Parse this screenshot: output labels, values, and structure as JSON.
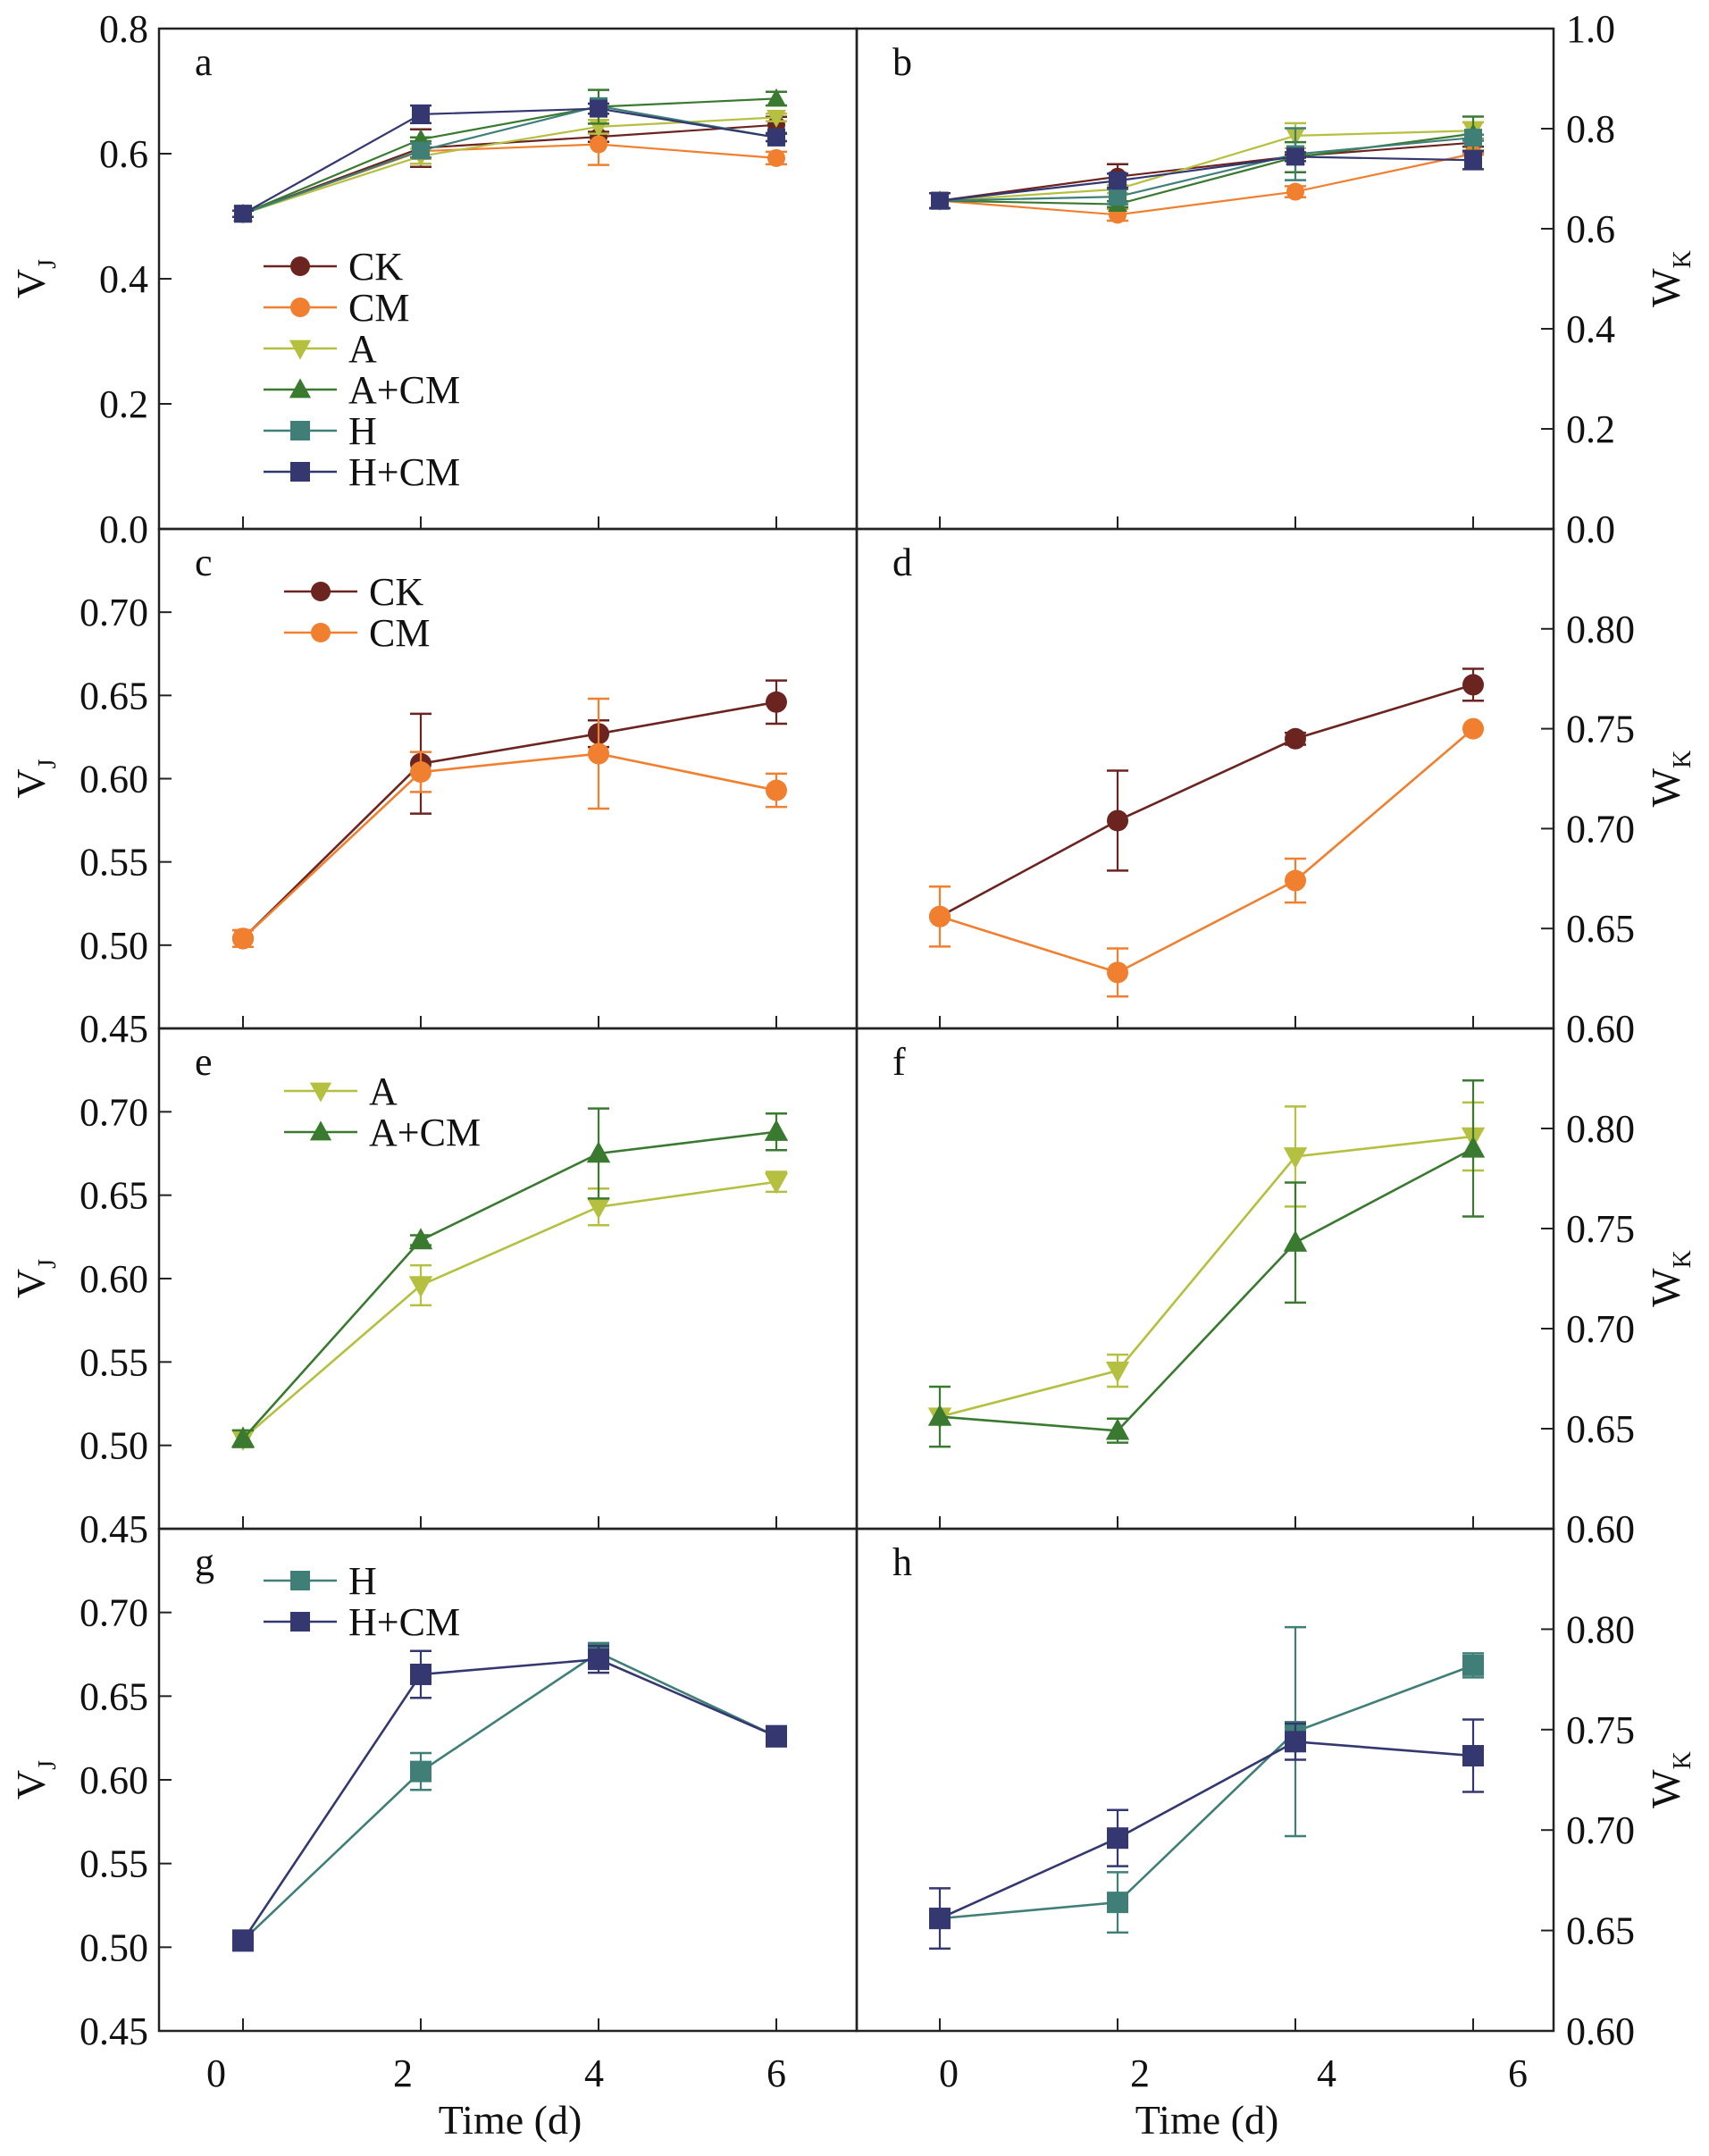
{
  "figure": {
    "x_label": "Time (d)",
    "left_y_label": "V",
    "left_y_label_sub": "J",
    "right_y_label": "W",
    "right_y_label_sub": "K"
  },
  "series_styles": {
    "CK": {
      "color": "#6b2420",
      "marker": "circle"
    },
    "CM": {
      "color": "#f08030",
      "marker": "circle"
    },
    "A": {
      "color": "#b5c040",
      "marker": "triangle-down"
    },
    "A+CM": {
      "color": "#3a7a30",
      "marker": "triangle-up"
    },
    "H": {
      "color": "#3f7f78",
      "marker": "square"
    },
    "H+CM": {
      "color": "#353870",
      "marker": "square"
    }
  },
  "chart_data": [
    {
      "panel": "a",
      "type": "line",
      "xlabel": "",
      "ylabel": "VJ",
      "x": [
        0,
        2,
        4,
        6
      ],
      "xticks": [],
      "ylim": [
        0.0,
        0.8
      ],
      "yticks": [
        0.0,
        0.2,
        0.4,
        0.6,
        0.8
      ],
      "ytick_labels": [
        "0.0",
        "0.2",
        "0.4",
        "0.6",
        "0.8"
      ],
      "legend": [
        "CK",
        "CM",
        "A",
        "A+CM",
        "H",
        "H+CM"
      ],
      "legend_position": "center-left",
      "series": [
        {
          "name": "CK",
          "values": [
            0.504,
            0.609,
            0.627,
            0.646
          ],
          "errors": [
            0.005,
            0.03,
            0.008,
            0.013
          ]
        },
        {
          "name": "CM",
          "values": [
            0.504,
            0.604,
            0.615,
            0.593
          ],
          "errors": [
            0.005,
            0.012,
            0.033,
            0.01
          ]
        },
        {
          "name": "A",
          "values": [
            0.504,
            0.596,
            0.643,
            0.658
          ],
          "errors": [
            0.005,
            0.012,
            0.011,
            0.006
          ]
        },
        {
          "name": "A+CM",
          "values": [
            0.504,
            0.623,
            0.675,
            0.688
          ],
          "errors": [
            0.005,
            0.003,
            0.027,
            0.011
          ]
        },
        {
          "name": "H",
          "values": [
            0.504,
            0.605,
            0.676,
            0.626
          ],
          "errors": [
            0.005,
            0.011,
            0.004,
            0.006
          ]
        },
        {
          "name": "H+CM",
          "values": [
            0.504,
            0.663,
            0.672,
            0.626
          ],
          "errors": [
            0.005,
            0.014,
            0.008,
            0.006
          ]
        }
      ]
    },
    {
      "panel": "b",
      "type": "line",
      "xlabel": "",
      "ylabel": "WK",
      "x": [
        0,
        2,
        4,
        6
      ],
      "xticks": [],
      "ylim": [
        0.0,
        1.0
      ],
      "yticks": [
        0.0,
        0.2,
        0.4,
        0.6,
        0.8,
        1.0
      ],
      "ytick_labels": [
        "0.0",
        "0.2",
        "0.4",
        "0.6",
        "0.8",
        "1.0"
      ],
      "legend": [],
      "series": [
        {
          "name": "CK",
          "values": [
            0.656,
            0.704,
            0.745,
            0.772
          ],
          "errors": [
            0.015,
            0.025,
            0.003,
            0.008
          ]
        },
        {
          "name": "CM",
          "values": [
            0.656,
            0.628,
            0.674,
            0.75
          ],
          "errors": [
            0.015,
            0.012,
            0.011,
            0.002
          ]
        },
        {
          "name": "A",
          "values": [
            0.656,
            0.679,
            0.786,
            0.796
          ],
          "errors": [
            0.015,
            0.008,
            0.025,
            0.017
          ]
        },
        {
          "name": "A+CM",
          "values": [
            0.656,
            0.649,
            0.743,
            0.79
          ],
          "errors": [
            0.015,
            0.006,
            0.03,
            0.034
          ]
        },
        {
          "name": "H",
          "values": [
            0.656,
            0.664,
            0.749,
            0.782
          ],
          "errors": [
            0.015,
            0.015,
            0.052,
            0.006
          ]
        },
        {
          "name": "H+CM",
          "values": [
            0.656,
            0.696,
            0.744,
            0.737
          ],
          "errors": [
            0.015,
            0.014,
            0.009,
            0.018
          ]
        }
      ]
    },
    {
      "panel": "c",
      "type": "line",
      "xlabel": "",
      "ylabel": "VJ",
      "x": [
        0,
        2,
        4,
        6
      ],
      "xticks": [],
      "ylim": [
        0.45,
        0.75
      ],
      "yticks": [
        0.45,
        0.5,
        0.55,
        0.6,
        0.65,
        0.7
      ],
      "ytick_labels": [
        "0.45",
        "0.50",
        "0.55",
        "0.60",
        "0.65",
        "0.70"
      ],
      "legend": [
        "CK",
        "CM"
      ],
      "legend_position": "top-left",
      "series": [
        {
          "name": "CK",
          "values": [
            0.504,
            0.609,
            0.627,
            0.646
          ],
          "errors": [
            0.005,
            0.03,
            0.008,
            0.013
          ]
        },
        {
          "name": "CM",
          "values": [
            0.504,
            0.604,
            0.615,
            0.593
          ],
          "errors": [
            0.005,
            0.012,
            0.033,
            0.01
          ]
        }
      ]
    },
    {
      "panel": "d",
      "type": "line",
      "xlabel": "",
      "ylabel": "WK",
      "x": [
        0,
        2,
        4,
        6
      ],
      "xticks": [],
      "ylim": [
        0.6,
        0.85
      ],
      "yticks": [
        0.6,
        0.65,
        0.7,
        0.75,
        0.8
      ],
      "ytick_labels": [
        "0.60",
        "0.65",
        "0.70",
        "0.75",
        "0.80"
      ],
      "legend": [],
      "series": [
        {
          "name": "CK",
          "values": [
            0.656,
            0.704,
            0.745,
            0.772
          ],
          "errors": [
            0.0,
            0.025,
            0.003,
            0.008
          ]
        },
        {
          "name": "CM",
          "values": [
            0.656,
            0.628,
            0.674,
            0.75
          ],
          "errors": [
            0.015,
            0.012,
            0.011,
            0.0
          ]
        }
      ]
    },
    {
      "panel": "e",
      "type": "line",
      "xlabel": "",
      "ylabel": "VJ",
      "x": [
        0,
        2,
        4,
        6
      ],
      "xticks": [],
      "ylim": [
        0.45,
        0.75
      ],
      "yticks": [
        0.45,
        0.5,
        0.55,
        0.6,
        0.65,
        0.7
      ],
      "ytick_labels": [
        "0.45",
        "0.50",
        "0.55",
        "0.60",
        "0.65",
        "0.70"
      ],
      "legend": [
        "A",
        "A+CM"
      ],
      "legend_position": "top-left",
      "series": [
        {
          "name": "A",
          "values": [
            0.504,
            0.596,
            0.643,
            0.658
          ],
          "errors": [
            0.005,
            0.012,
            0.011,
            0.006
          ]
        },
        {
          "name": "A+CM",
          "values": [
            0.504,
            0.623,
            0.675,
            0.688
          ],
          "errors": [
            0.005,
            0.003,
            0.027,
            0.011
          ]
        }
      ]
    },
    {
      "panel": "f",
      "type": "line",
      "xlabel": "",
      "ylabel": "WK",
      "x": [
        0,
        2,
        4,
        6
      ],
      "xticks": [],
      "ylim": [
        0.6,
        0.85
      ],
      "yticks": [
        0.6,
        0.65,
        0.7,
        0.75,
        0.8
      ],
      "ytick_labels": [
        "0.60",
        "0.65",
        "0.70",
        "0.75",
        "0.80"
      ],
      "legend": [],
      "series": [
        {
          "name": "A",
          "values": [
            0.656,
            0.679,
            0.786,
            0.796
          ],
          "errors": [
            0.0,
            0.008,
            0.025,
            0.017
          ]
        },
        {
          "name": "A+CM",
          "values": [
            0.656,
            0.649,
            0.743,
            0.79
          ],
          "errors": [
            0.015,
            0.006,
            0.03,
            0.034
          ]
        }
      ]
    },
    {
      "panel": "g",
      "type": "line",
      "xlabel": "Time (d)",
      "ylabel": "VJ",
      "x": [
        0,
        2,
        4,
        6
      ],
      "xticks": [
        0,
        2,
        4,
        6
      ],
      "xtick_labels": [
        "0",
        "2",
        "4",
        "6"
      ],
      "ylim": [
        0.45,
        0.75
      ],
      "yticks": [
        0.45,
        0.5,
        0.55,
        0.6,
        0.65,
        0.7
      ],
      "ytick_labels": [
        "0.45",
        "0.50",
        "0.55",
        "0.60",
        "0.65",
        "0.70"
      ],
      "legend": [
        "H",
        "H+CM"
      ],
      "legend_position": "top-left",
      "series": [
        {
          "name": "H",
          "values": [
            0.504,
            0.605,
            0.676,
            0.626
          ],
          "errors": [
            0.005,
            0.011,
            0.004,
            0.006
          ]
        },
        {
          "name": "H+CM",
          "values": [
            0.504,
            0.663,
            0.672,
            0.626
          ],
          "errors": [
            0.006,
            0.014,
            0.008,
            0.006
          ]
        }
      ]
    },
    {
      "panel": "h",
      "type": "line",
      "xlabel": "Time (d)",
      "ylabel": "WK",
      "x": [
        0,
        2,
        4,
        6
      ],
      "xticks": [
        0,
        2,
        4,
        6
      ],
      "xtick_labels": [
        "0",
        "2",
        "4",
        "6"
      ],
      "ylim": [
        0.6,
        0.85
      ],
      "yticks": [
        0.6,
        0.65,
        0.7,
        0.75,
        0.8
      ],
      "ytick_labels": [
        "0.60",
        "0.65",
        "0.70",
        "0.75",
        "0.80"
      ],
      "legend": [],
      "series": [
        {
          "name": "H",
          "values": [
            0.656,
            0.664,
            0.749,
            0.782
          ],
          "errors": [
            0.0,
            0.015,
            0.052,
            0.006
          ]
        },
        {
          "name": "H+CM",
          "values": [
            0.656,
            0.696,
            0.744,
            0.737
          ],
          "errors": [
            0.015,
            0.014,
            0.009,
            0.018
          ]
        }
      ]
    }
  ]
}
